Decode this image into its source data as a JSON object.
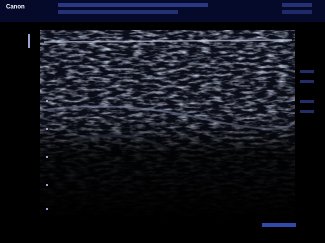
{
  "header": {
    "brand": "Canon"
  }
}
